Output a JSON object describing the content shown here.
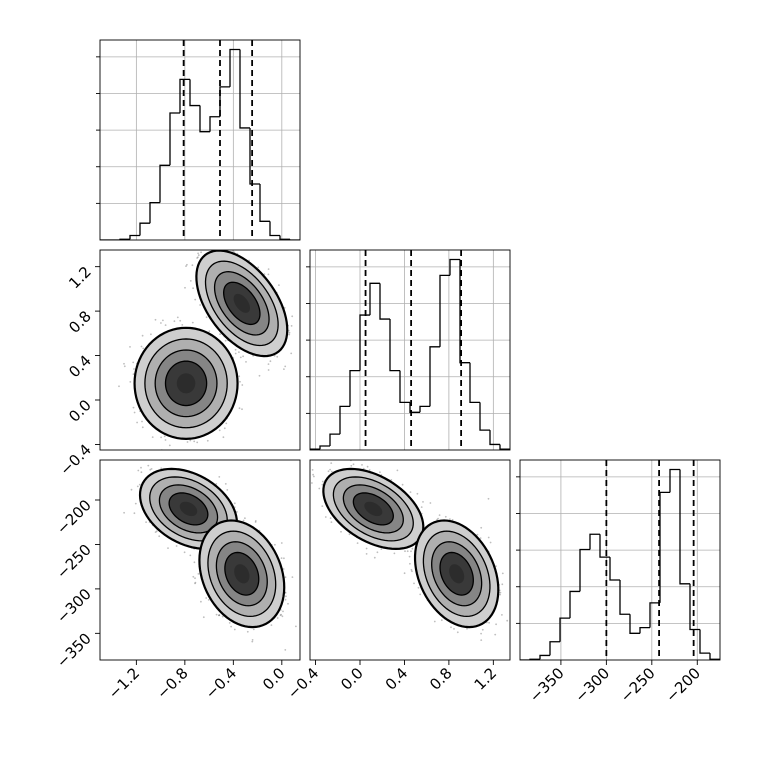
{
  "chart_data": [
    {
      "type": "histogram",
      "panel": "param0-marginal",
      "xlim": [
        -1.5,
        0.15
      ],
      "bin_edges": [
        -1.5,
        -1.4175,
        -1.335,
        -1.2525,
        -1.17,
        -1.0875,
        -1.005,
        -0.9225,
        -0.84,
        -0.7575,
        -0.675,
        -0.5925,
        -0.51,
        -0.4275,
        -0.345,
        -0.2625,
        -0.18,
        -0.0975,
        -0.015,
        0.0675,
        0.15
      ],
      "counts": [
        0,
        0,
        2,
        12,
        45,
        100,
        200,
        340,
        430,
        360,
        290,
        330,
        410,
        510,
        300,
        150,
        50,
        12,
        2,
        0
      ],
      "quantiles": [
        -0.81,
        -0.51,
        -0.245
      ],
      "grid": true
    },
    {
      "type": "histogram",
      "panel": "param1-marginal",
      "xlim": [
        -0.45,
        1.35
      ],
      "bin_edges": [
        -0.45,
        -0.36,
        -0.27,
        -0.18,
        -0.09,
        0.0,
        0.09,
        0.18,
        0.27,
        0.36,
        0.45,
        0.54,
        0.63,
        0.72,
        0.81,
        0.9,
        0.99,
        1.08,
        1.17,
        1.26,
        1.35
      ],
      "counts": [
        2,
        10,
        40,
        110,
        200,
        340,
        420,
        330,
        200,
        120,
        95,
        110,
        260,
        440,
        480,
        220,
        120,
        50,
        14,
        2
      ],
      "quantiles": [
        0.05,
        0.46,
        0.91
      ],
      "grid": true
    },
    {
      "type": "histogram",
      "panel": "param2-marginal",
      "xlim": [
        -395,
        -175
      ],
      "bin_edges": [
        -395,
        -384,
        -373,
        -362,
        -351,
        -340,
        -329,
        -318,
        -307,
        -296,
        -285,
        -274,
        -263,
        -252,
        -241,
        -230,
        -219,
        -208,
        -197,
        -186,
        -175
      ],
      "counts": [
        0,
        2,
        12,
        48,
        110,
        180,
        290,
        330,
        270,
        210,
        120,
        70,
        85,
        150,
        440,
        500,
        200,
        80,
        18,
        2
      ],
      "quantiles": [
        -300,
        -242,
        -204
      ],
      "grid": true
    },
    {
      "type": "scatter",
      "panel": "param1-vs-param0",
      "xlim": [
        -1.5,
        0.15
      ],
      "ylim": [
        -0.45,
        1.35
      ],
      "clusters": [
        {
          "cx": -0.79,
          "cy": 0.15,
          "sx": 0.17,
          "sy": 0.2,
          "rho": 0.0,
          "n": 1400
        },
        {
          "cx": -0.33,
          "cy": 0.87,
          "sx": 0.15,
          "sy": 0.19,
          "rho": -0.5,
          "n": 1400
        }
      ],
      "density_levels": [
        0.393,
        0.675,
        0.864,
        0.956
      ]
    },
    {
      "type": "scatter",
      "panel": "param2-vs-param0",
      "xlim": [
        -1.5,
        0.15
      ],
      "ylim": [
        -380,
        -155
      ],
      "clusters": [
        {
          "cx": -0.77,
          "cy": -210,
          "sx": 0.16,
          "sy": 18,
          "rho": -0.35,
          "n": 1400
        },
        {
          "cx": -0.33,
          "cy": -283,
          "sx": 0.14,
          "sy": 24,
          "rho": -0.25,
          "n": 1400
        }
      ],
      "density_levels": [
        0.393,
        0.675,
        0.864,
        0.956
      ]
    },
    {
      "type": "scatter",
      "panel": "param2-vs-param1",
      "xlim": [
        -0.45,
        1.35
      ],
      "ylim": [
        -380,
        -155
      ],
      "clusters": [
        {
          "cx": 0.12,
          "cy": -210,
          "sx": 0.18,
          "sy": 18,
          "rho": -0.45,
          "n": 1400
        },
        {
          "cx": 0.87,
          "cy": -283,
          "sx": 0.15,
          "sy": 24,
          "rho": -0.3,
          "n": 1400
        }
      ],
      "density_levels": [
        0.393,
        0.675,
        0.864,
        0.956
      ]
    }
  ],
  "axes": {
    "x0_ticks": [
      {
        "value": -1.2,
        "label": "−1.2"
      },
      {
        "value": -0.8,
        "label": "−0.8"
      },
      {
        "value": -0.4,
        "label": "−0.4"
      },
      {
        "value": 0.0,
        "label": "0.0"
      }
    ],
    "x1_ticks": [
      {
        "value": -0.4,
        "label": "−0.4"
      },
      {
        "value": 0.0,
        "label": "0.0"
      },
      {
        "value": 0.4,
        "label": "0.4"
      },
      {
        "value": 0.8,
        "label": "0.8"
      },
      {
        "value": 1.2,
        "label": "1.2"
      }
    ],
    "x2_ticks": [
      {
        "value": -350,
        "label": "−350"
      },
      {
        "value": -300,
        "label": "−300"
      },
      {
        "value": -250,
        "label": "−250"
      },
      {
        "value": -200,
        "label": "−200"
      }
    ],
    "y1_ticks": [
      {
        "value": -0.4,
        "label": "−0.4"
      },
      {
        "value": 0.0,
        "label": "0.0"
      },
      {
        "value": 0.4,
        "label": "0.4"
      },
      {
        "value": 0.8,
        "label": "0.8"
      },
      {
        "value": 1.2,
        "label": "1.2"
      }
    ],
    "y2_ticks": [
      {
        "value": -350,
        "label": "−350"
      },
      {
        "value": -300,
        "label": "−300"
      },
      {
        "value": -250,
        "label": "−250"
      },
      {
        "value": -200,
        "label": "−200"
      }
    ]
  }
}
